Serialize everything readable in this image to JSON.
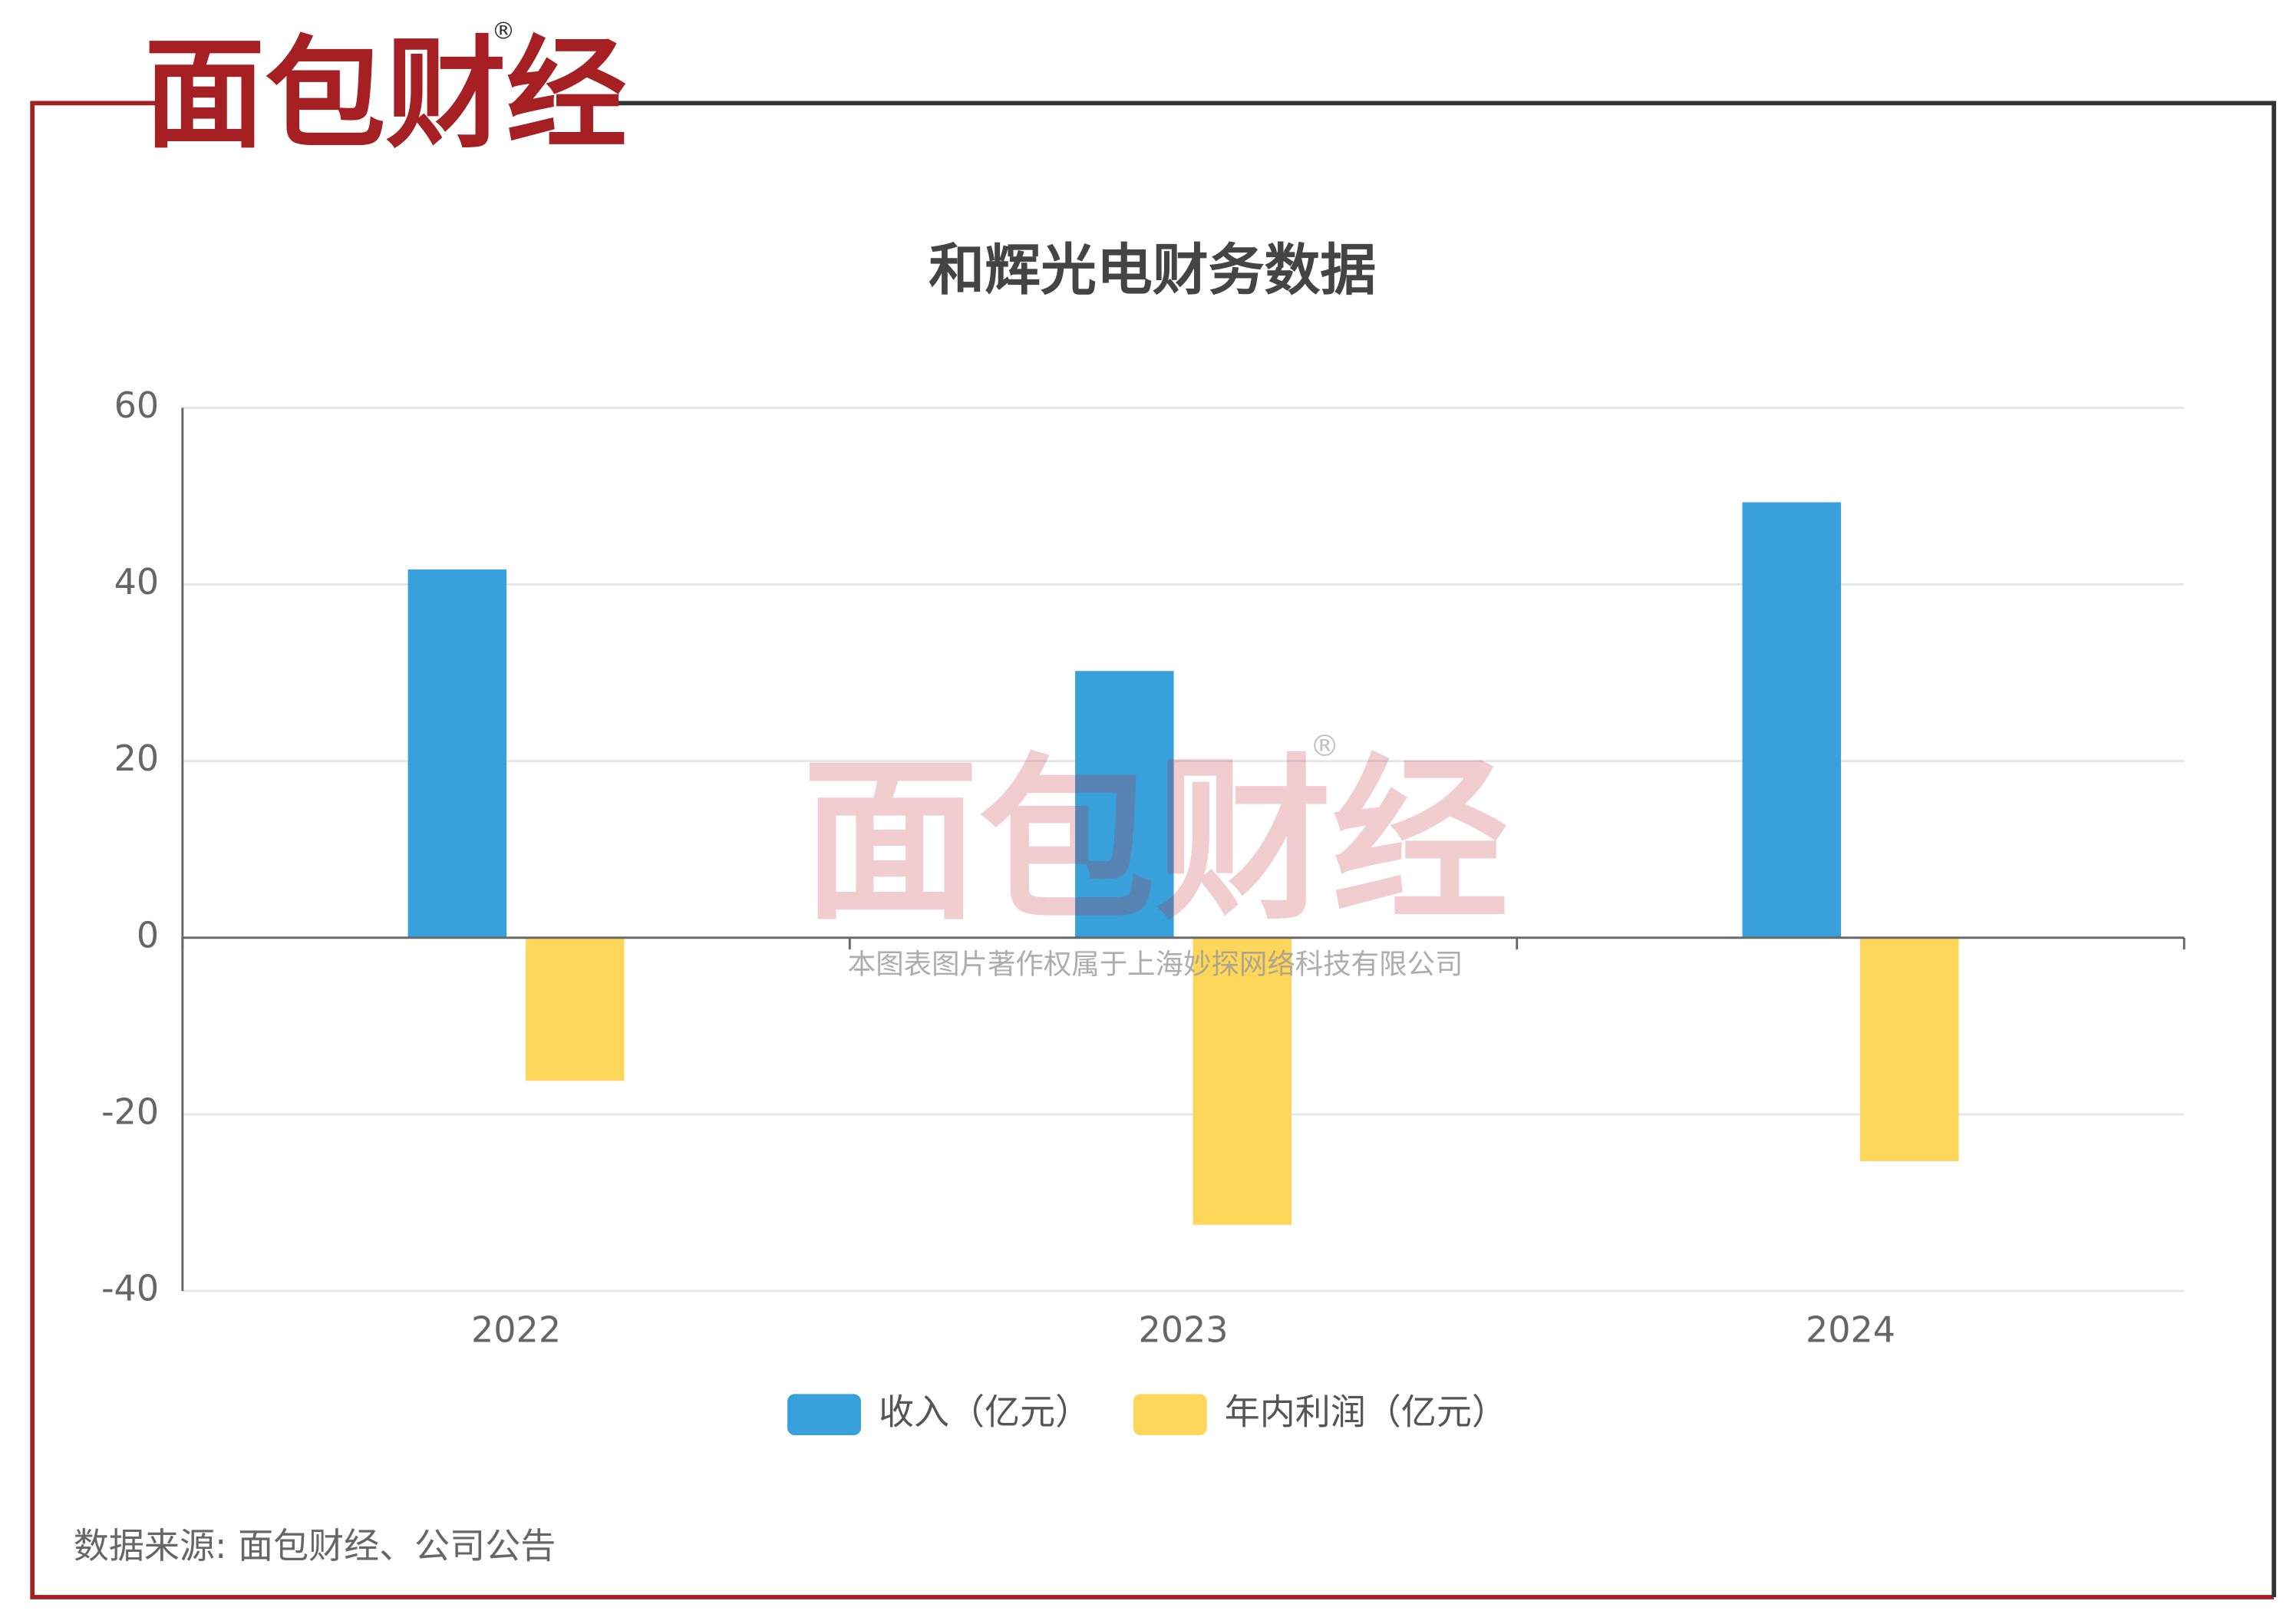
{
  "brand": "面包财经",
  "registered": "®",
  "watermark": {
    "brand": "面包财经",
    "registered": "®",
    "copyright": "本图表图片著作权属于上海妙探网络科技有限公司"
  },
  "chart_data": {
    "type": "bar",
    "title": "和辉光电财务数据",
    "categories": [
      "2022",
      "2023",
      "2024"
    ],
    "series": [
      {
        "name": "收入（亿元）",
        "color": "#38a1db",
        "values": [
          41.7,
          30.2,
          49.3
        ]
      },
      {
        "name": "年内利润（亿元）",
        "color": "#fed65a",
        "values": [
          -16.2,
          -32.5,
          -25.3
        ]
      }
    ],
    "ylim": [
      -40,
      60
    ],
    "yticks": [
      -40,
      -20,
      0,
      20,
      40,
      60
    ],
    "grid": true,
    "legend": "bottom"
  },
  "source": "数据来源: 面包财经、公司公告"
}
